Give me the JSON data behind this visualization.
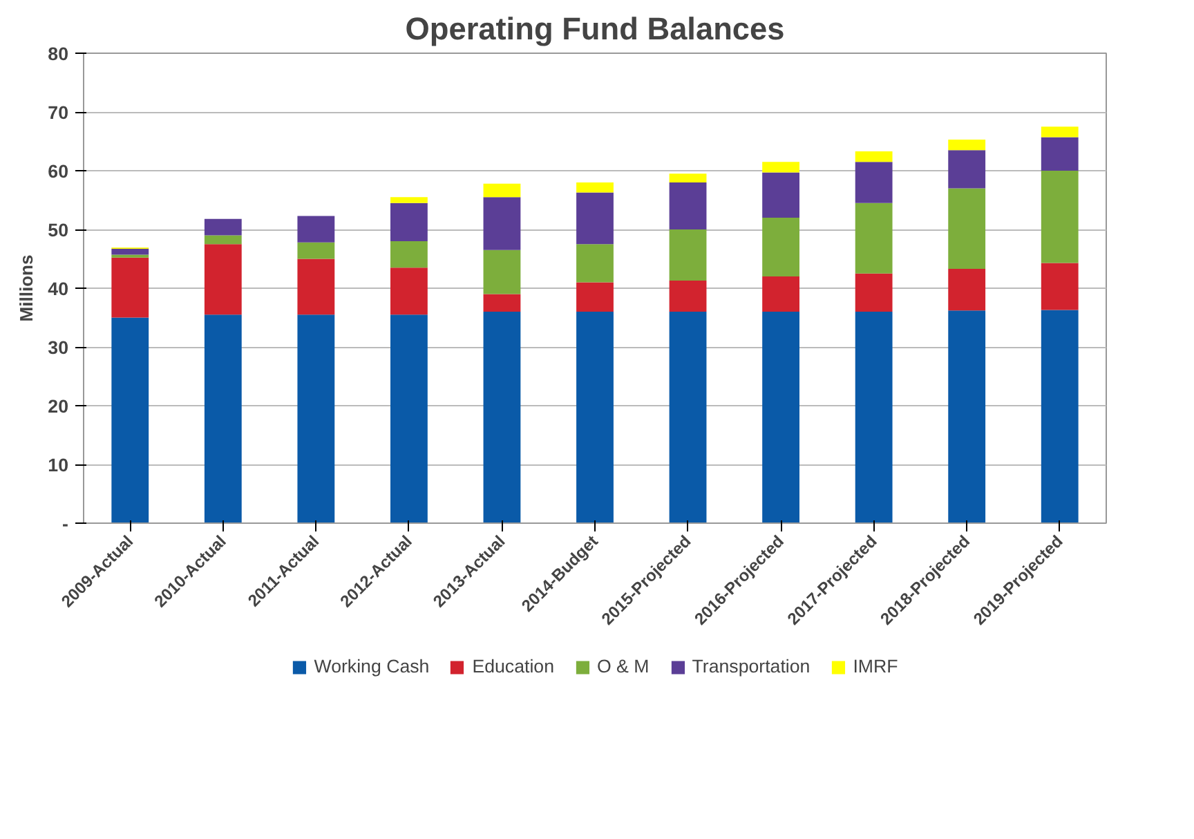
{
  "chart_data": {
    "type": "bar",
    "title": "Operating Fund Balances",
    "ylabel": "Millions",
    "stacked": true,
    "categories": [
      "2009-Actual",
      "2010-Actual",
      "2011-Actual",
      "2012-Actual",
      "2013-Actual",
      "2014-Budget",
      "2015-Projected",
      "2016-Projected",
      "2017-Projected",
      "2018-Projected",
      "2019-Projected"
    ],
    "series": [
      {
        "name": "Working Cash",
        "color": "#0a5aa8",
        "values": [
          35,
          35.5,
          35.5,
          35.5,
          36,
          36,
          36,
          36,
          36,
          36.2,
          36.3
        ]
      },
      {
        "name": "Education",
        "color": "#d2232e",
        "values": [
          10.2,
          12,
          9.5,
          8,
          3,
          5,
          5.3,
          6,
          6.5,
          7.1,
          8
        ]
      },
      {
        "name": "O & M",
        "color": "#7dae3c",
        "values": [
          0.5,
          1.5,
          2.8,
          4.5,
          7.5,
          6.5,
          8.7,
          10,
          12,
          13.7,
          15.7
        ]
      },
      {
        "name": "Transportation",
        "color": "#5b3e96",
        "values": [
          1,
          2.8,
          4.5,
          6.5,
          9,
          8.8,
          8,
          7.7,
          7,
          6.5,
          5.7
        ]
      },
      {
        "name": "IMRF",
        "color": "#ffff00",
        "values": [
          0.2,
          0,
          0,
          1,
          2.3,
          1.7,
          1.5,
          1.8,
          1.8,
          1.8,
          1.8
        ]
      }
    ],
    "ylim": [
      0,
      80
    ],
    "yticks": [
      {
        "value": 0,
        "label": "-"
      },
      10,
      20,
      30,
      40,
      50,
      60,
      70,
      80
    ],
    "grid": "y",
    "legend": "bottom"
  }
}
